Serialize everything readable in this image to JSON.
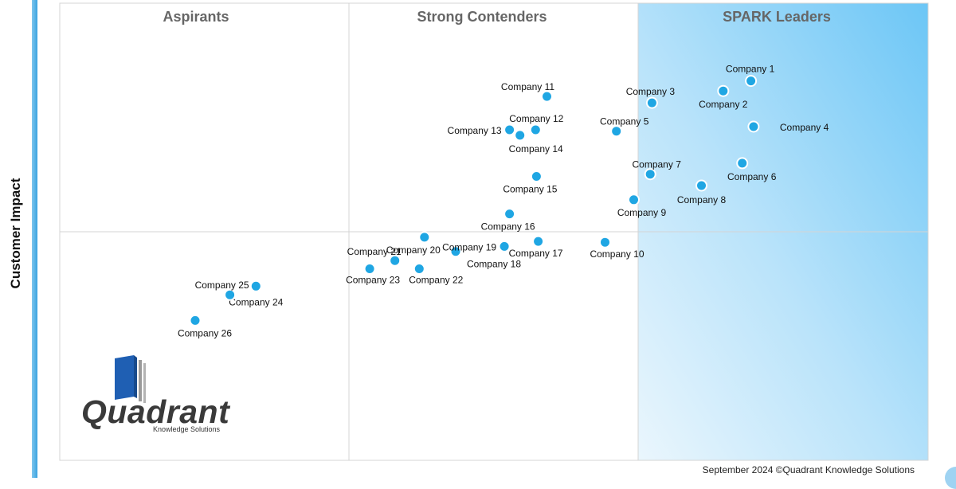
{
  "chart_data": {
    "type": "scatter",
    "title": "",
    "ylabel": "Customer Impact",
    "xlabel": "",
    "quadrants": [
      "Aspirants",
      "Strong Contenders",
      "SPARK Leaders"
    ],
    "highlight_color": "#7fcdf7",
    "marker_color": "#1fa6e3",
    "points": [
      {
        "name": "Company 1",
        "x": 79.6,
        "y": 83.0
      },
      {
        "name": "Company 2",
        "x": 76.4,
        "y": 80.8
      },
      {
        "name": "Company 3",
        "x": 68.2,
        "y": 78.2
      },
      {
        "name": "Company 4",
        "x": 79.9,
        "y": 73.0
      },
      {
        "name": "Company 5",
        "x": 64.1,
        "y": 72.0
      },
      {
        "name": "Company 6",
        "x": 78.6,
        "y": 65.0
      },
      {
        "name": "Company 7",
        "x": 68.0,
        "y": 62.6
      },
      {
        "name": "Company 8",
        "x": 73.9,
        "y": 60.1
      },
      {
        "name": "Company 9",
        "x": 66.1,
        "y": 57.0
      },
      {
        "name": "Company 10",
        "x": 62.8,
        "y": 47.7
      },
      {
        "name": "Company 11",
        "x": 56.1,
        "y": 79.6
      },
      {
        "name": "Company 12",
        "x": 54.8,
        "y": 72.3
      },
      {
        "name": "Company 13",
        "x": 51.8,
        "y": 72.3
      },
      {
        "name": "Company 14",
        "x": 53.0,
        "y": 71.1
      },
      {
        "name": "Company 15",
        "x": 54.9,
        "y": 62.1
      },
      {
        "name": "Company 16",
        "x": 51.8,
        "y": 53.9
      },
      {
        "name": "Company 17",
        "x": 55.1,
        "y": 47.9
      },
      {
        "name": "Company 18",
        "x": 45.6,
        "y": 45.7
      },
      {
        "name": "Company 19",
        "x": 51.2,
        "y": 46.8
      },
      {
        "name": "Company 20",
        "x": 42.0,
        "y": 48.8
      },
      {
        "name": "Company 21",
        "x": 38.6,
        "y": 43.7
      },
      {
        "name": "Company 22",
        "x": 41.4,
        "y": 41.9
      },
      {
        "name": "Company 23",
        "x": 35.7,
        "y": 41.9
      },
      {
        "name": "Company 24",
        "x": 22.6,
        "y": 38.1
      },
      {
        "name": "Company 25",
        "x": 19.6,
        "y": 36.2
      },
      {
        "name": "Company 26",
        "x": 15.6,
        "y": 30.6
      }
    ]
  },
  "logo": {
    "wordmark": "Quadrant",
    "tagline": "Knowledge Solutions"
  },
  "footer": {
    "copyright": "September 2024 ©Quadrant Knowledge Solutions"
  }
}
